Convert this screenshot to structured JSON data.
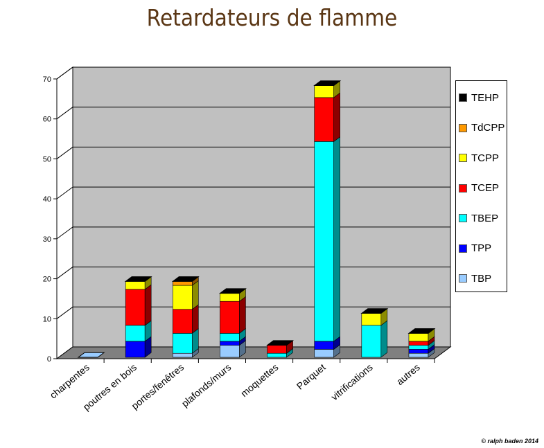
{
  "title": "Retardateurs de flamme",
  "credit": "© ralph baden 2014",
  "chart_data": {
    "type": "bar",
    "stacked": true,
    "three_d": true,
    "categories": [
      "charpentes",
      "poutres en bois",
      "portes/fenêtres",
      "plafonds/murs",
      "moquettes",
      "Parquet",
      "vitrifications",
      "autres"
    ],
    "ylim": [
      0,
      70
    ],
    "yticks": [
      0,
      10,
      20,
      30,
      40,
      50,
      60,
      70
    ],
    "grid": true,
    "legend_position": "right",
    "series": [
      {
        "name": "TBP",
        "color": "#99ccff",
        "values": [
          0,
          0,
          1,
          3,
          0,
          2,
          0,
          1
        ]
      },
      {
        "name": "TPP",
        "color": "#0000ff",
        "values": [
          0,
          4,
          0,
          1,
          0,
          2,
          0,
          1
        ]
      },
      {
        "name": "TBEP",
        "color": "#00ffff",
        "values": [
          0,
          4,
          5,
          2,
          1,
          50,
          8,
          1
        ]
      },
      {
        "name": "TCEP",
        "color": "#ff0000",
        "values": [
          0,
          9,
          6,
          8,
          2,
          11,
          0,
          1
        ]
      },
      {
        "name": "TCPP",
        "color": "#ffff00",
        "values": [
          0,
          2,
          6,
          2,
          0,
          3,
          3,
          2
        ]
      },
      {
        "name": "TdCPP",
        "color": "#ff9900",
        "values": [
          0,
          0,
          1,
          0,
          0,
          0,
          0,
          0
        ]
      },
      {
        "name": "TEHP",
        "color": "#000000",
        "values": [
          0,
          0,
          0,
          0,
          0,
          0,
          0,
          0
        ]
      }
    ]
  }
}
